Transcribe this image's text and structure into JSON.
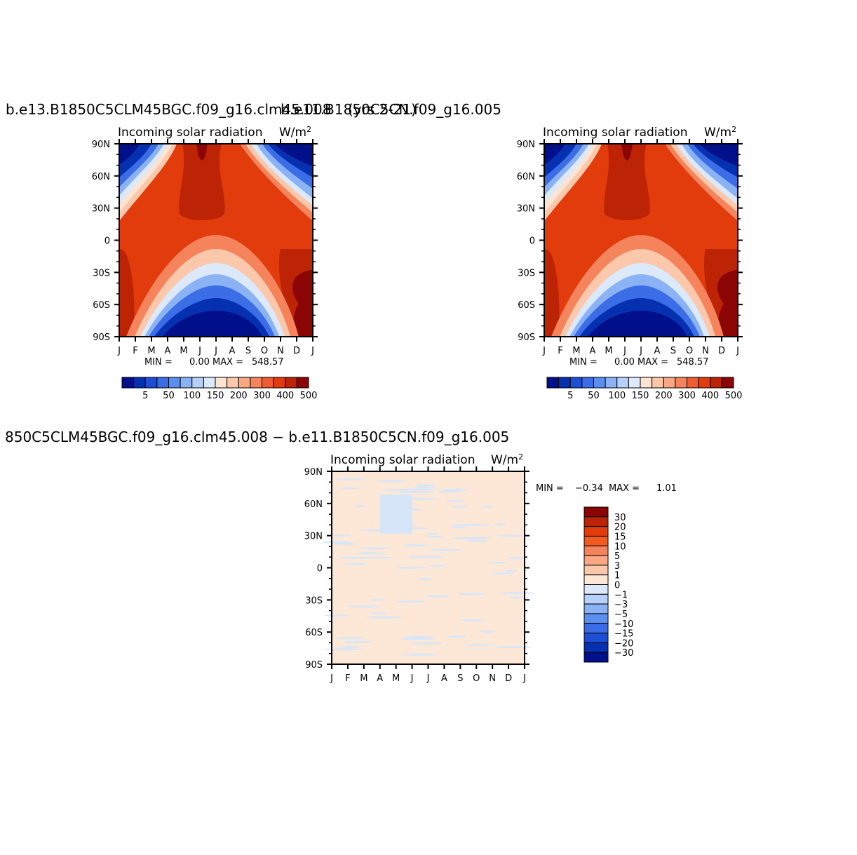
{
  "chart_data": [
    {
      "type": "heatmap",
      "title": "b.e13.B1850C5CLM45BGC.f09_g16.clm45.008",
      "overlap_title": "b.e11.B1850C5CN.f09_g16.005",
      "title_tail": "(yrs 2-21)",
      "variable": "Incoming  solar  radiation",
      "units": "W/m",
      "units_sup": "2",
      "x_ticks": [
        "J",
        "F",
        "M",
        "A",
        "M",
        "J",
        "J",
        "A",
        "S",
        "O",
        "N",
        "D",
        "J"
      ],
      "y_ticks": [
        "90N",
        "60N",
        "30N",
        "0",
        "30S",
        "60S",
        "90S"
      ],
      "min_label": "MIN =",
      "min": "0.00",
      "max_label": "MAX =",
      "max": "548.57",
      "colorbar_labels": [
        "5",
        "50",
        "100",
        "150",
        "200",
        "300",
        "400",
        "500"
      ]
    },
    {
      "type": "heatmap",
      "variable": "Incoming  solar  radiation",
      "units": "W/m",
      "units_sup": "2",
      "x_ticks": [
        "J",
        "F",
        "M",
        "A",
        "M",
        "J",
        "J",
        "A",
        "S",
        "O",
        "N",
        "D",
        "J"
      ],
      "y_ticks": [
        "90N",
        "60N",
        "30N",
        "0",
        "30S",
        "60S",
        "90S"
      ],
      "min_label": "MIN =",
      "min": "0.00",
      "max_label": "MAX =",
      "max": "548.57",
      "colorbar_labels": [
        "5",
        "50",
        "100",
        "150",
        "200",
        "300",
        "400",
        "500"
      ]
    },
    {
      "type": "heatmap",
      "title": "850C5CLM45BGC.f09_g16.clm45.008  −  b.e11.B1850C5CN.f09_g16.005",
      "variable": "Incoming  solar  radiation",
      "units": "W/m",
      "units_sup": "2",
      "x_ticks": [
        "J",
        "F",
        "M",
        "A",
        "M",
        "J",
        "J",
        "A",
        "S",
        "O",
        "N",
        "D",
        "J"
      ],
      "y_ticks": [
        "90N",
        "60N",
        "30N",
        "0",
        "30S",
        "60S",
        "90S"
      ],
      "min_label": "MIN =",
      "min": "−0.34",
      "max_label": "MAX =",
      "max": "1.01",
      "colorbar_labels": [
        "30",
        "20",
        "15",
        "10",
        "5",
        "3",
        "1",
        "0",
        "−1",
        "−3",
        "−5",
        "−10",
        "−15",
        "−20",
        "−30"
      ]
    }
  ],
  "colors": {
    "abs_scale": [
      "#000f8a",
      "#0530b0",
      "#1c4fd6",
      "#3a6de6",
      "#5a8ff0",
      "#8ab2f5",
      "#b6d0fa",
      "#dce9fb",
      "#fde3d2",
      "#fbc8ac",
      "#f9a883",
      "#f5845c",
      "#ef5c2f",
      "#e23b0c",
      "#bd2405",
      "#8a0503"
    ],
    "diff_scale": [
      "#8a0503",
      "#bd2405",
      "#e23b0c",
      "#f25a20",
      "#f5845c",
      "#f9a883",
      "#fbc8ac",
      "#fde8d8",
      "#dce9fb",
      "#b6d0fa",
      "#8ab2f5",
      "#5a8ff0",
      "#3a6de6",
      "#1c4fd6",
      "#0530b0",
      "#000f8a"
    ]
  }
}
